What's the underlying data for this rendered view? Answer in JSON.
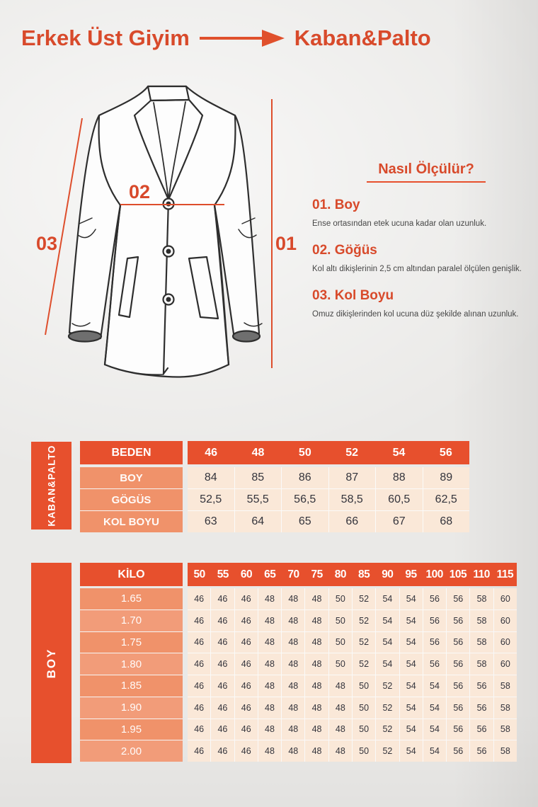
{
  "header": {
    "category": "Erkek Üst Giyim",
    "product": "Kaban&Palto"
  },
  "diagram": {
    "label_boy": "01",
    "label_gogus": "02",
    "label_kol_boyu": "03"
  },
  "measure_guide": {
    "title": "Nasıl Ölçülür?",
    "items": [
      {
        "num": "01.",
        "name": "Boy",
        "desc": "Ense ortasından etek ucuna kadar olan uzunluk."
      },
      {
        "num": "02.",
        "name": "Göğüs",
        "desc": "Kol altı dikişlerinin 2,5 cm altından paralel ölçülen genişlik."
      },
      {
        "num": "03.",
        "name": "Kol Boyu",
        "desc": "Omuz dikişlerinden kol ucuna düz şekilde alınan uzunluk."
      }
    ]
  },
  "size_table": {
    "side_label": "KABAN&PALTO",
    "corner_label": "BEDEN",
    "columns": [
      "46",
      "48",
      "50",
      "52",
      "54",
      "56"
    ],
    "rows": [
      {
        "label": "BOY",
        "values": [
          "84",
          "85",
          "86",
          "87",
          "88",
          "89"
        ]
      },
      {
        "label": "GÖGÜS",
        "values": [
          "52,5",
          "55,5",
          "56,5",
          "58,5",
          "60,5",
          "62,5"
        ]
      },
      {
        "label": "KOL BOYU",
        "values": [
          "63",
          "64",
          "65",
          "66",
          "67",
          "68"
        ]
      }
    ]
  },
  "height_weight_table": {
    "side_label": "BOY",
    "corner_label": "KİLO",
    "columns": [
      "50",
      "55",
      "60",
      "65",
      "70",
      "75",
      "80",
      "85",
      "90",
      "95",
      "100",
      "105",
      "110",
      "115"
    ],
    "rows": [
      {
        "label": "1.65",
        "values": [
          "46",
          "46",
          "46",
          "48",
          "48",
          "48",
          "50",
          "52",
          "54",
          "54",
          "56",
          "56",
          "58",
          "60"
        ]
      },
      {
        "label": "1.70",
        "values": [
          "46",
          "46",
          "46",
          "48",
          "48",
          "48",
          "50",
          "52",
          "54",
          "54",
          "56",
          "56",
          "58",
          "60"
        ]
      },
      {
        "label": "1.75",
        "values": [
          "46",
          "46",
          "46",
          "48",
          "48",
          "48",
          "50",
          "52",
          "54",
          "54",
          "56",
          "56",
          "58",
          "60"
        ]
      },
      {
        "label": "1.80",
        "values": [
          "46",
          "46",
          "46",
          "48",
          "48",
          "48",
          "50",
          "52",
          "54",
          "54",
          "56",
          "56",
          "58",
          "60"
        ]
      },
      {
        "label": "1.85",
        "values": [
          "46",
          "46",
          "46",
          "48",
          "48",
          "48",
          "48",
          "50",
          "52",
          "54",
          "54",
          "56",
          "56",
          "58"
        ]
      },
      {
        "label": "1.90",
        "values": [
          "46",
          "46",
          "46",
          "48",
          "48",
          "48",
          "48",
          "50",
          "52",
          "54",
          "54",
          "56",
          "56",
          "58"
        ]
      },
      {
        "label": "1.95",
        "values": [
          "46",
          "46",
          "46",
          "48",
          "48",
          "48",
          "48",
          "50",
          "52",
          "54",
          "54",
          "56",
          "56",
          "58"
        ]
      },
      {
        "label": "2.00",
        "values": [
          "46",
          "46",
          "46",
          "48",
          "48",
          "48",
          "48",
          "50",
          "52",
          "54",
          "54",
          "56",
          "56",
          "58"
        ]
      }
    ]
  },
  "colors": {
    "accent": "#E7502D",
    "accent_text": "#D84A2B",
    "salmon": "#F0926A",
    "salmon_alt": "#F29C79",
    "cream": "#FAE8D8",
    "cell_text": "#34343C"
  }
}
